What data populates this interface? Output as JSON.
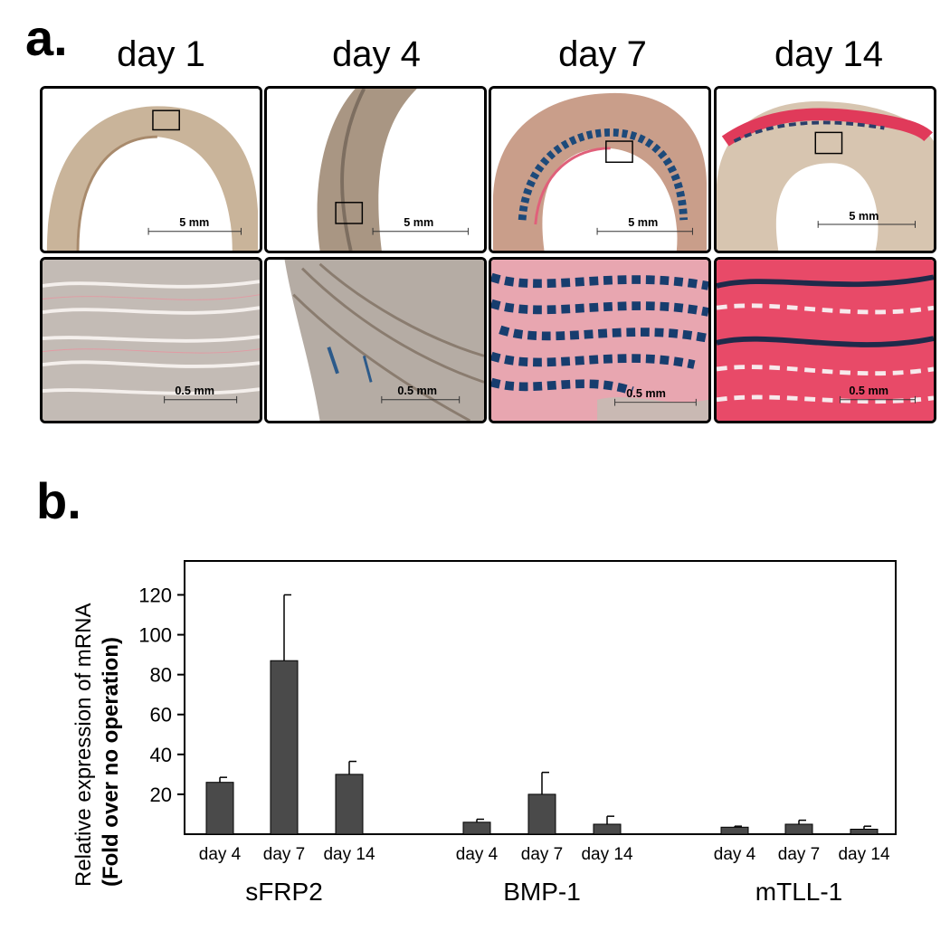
{
  "panel_a": {
    "label": "a.",
    "days": [
      "day 1",
      "day 4",
      "day 7",
      "day 14"
    ],
    "scale_top": "5 mm",
    "scale_bottom": "0.5 mm"
  },
  "panel_b": {
    "label": "b."
  },
  "chart_data": {
    "type": "bar",
    "groups": [
      {
        "name": "sFRP2",
        "categories": [
          "day 4",
          "day 7",
          "day 14"
        ],
        "values": [
          26,
          87,
          30
        ],
        "errors": [
          2.5,
          33,
          6.5
        ]
      },
      {
        "name": "BMP-1",
        "categories": [
          "day 4",
          "day 7",
          "day 14"
        ],
        "values": [
          6,
          20,
          5
        ],
        "errors": [
          1.5,
          11,
          4
        ]
      },
      {
        "name": "mTLL-1",
        "categories": [
          "day 4",
          "day 7",
          "day 14"
        ],
        "values": [
          3.5,
          5,
          2.5
        ],
        "errors": [
          0.5,
          2,
          1.5
        ]
      }
    ],
    "ylabel_line1": "Relative expression of mRNA",
    "ylabel_line2": "(Fold over no operation)",
    "yticks": [
      20,
      40,
      60,
      80,
      100,
      120
    ],
    "ylim": [
      0,
      137
    ],
    "bar_color": "#4a4a4a",
    "grid": false
  }
}
